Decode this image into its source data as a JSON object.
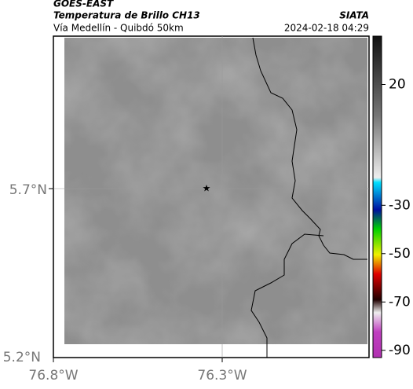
{
  "header": {
    "title": "GOES-EAST",
    "subtitle": "Temperatura de Brillo CH13",
    "location": "Vía Medellín - Quibdó 50km",
    "source": "SIATA",
    "datetime": "2024-02-18 04:29"
  },
  "map": {
    "x_ticks": [
      "76.8°W",
      "76.3°W"
    ],
    "y_ticks": [
      "5.7°N",
      "5.2°N"
    ]
  },
  "colorbar": {
    "lim": [
      40,
      -93
    ],
    "ticks": [
      20,
      -30,
      -50,
      -70,
      -90
    ]
  }
}
